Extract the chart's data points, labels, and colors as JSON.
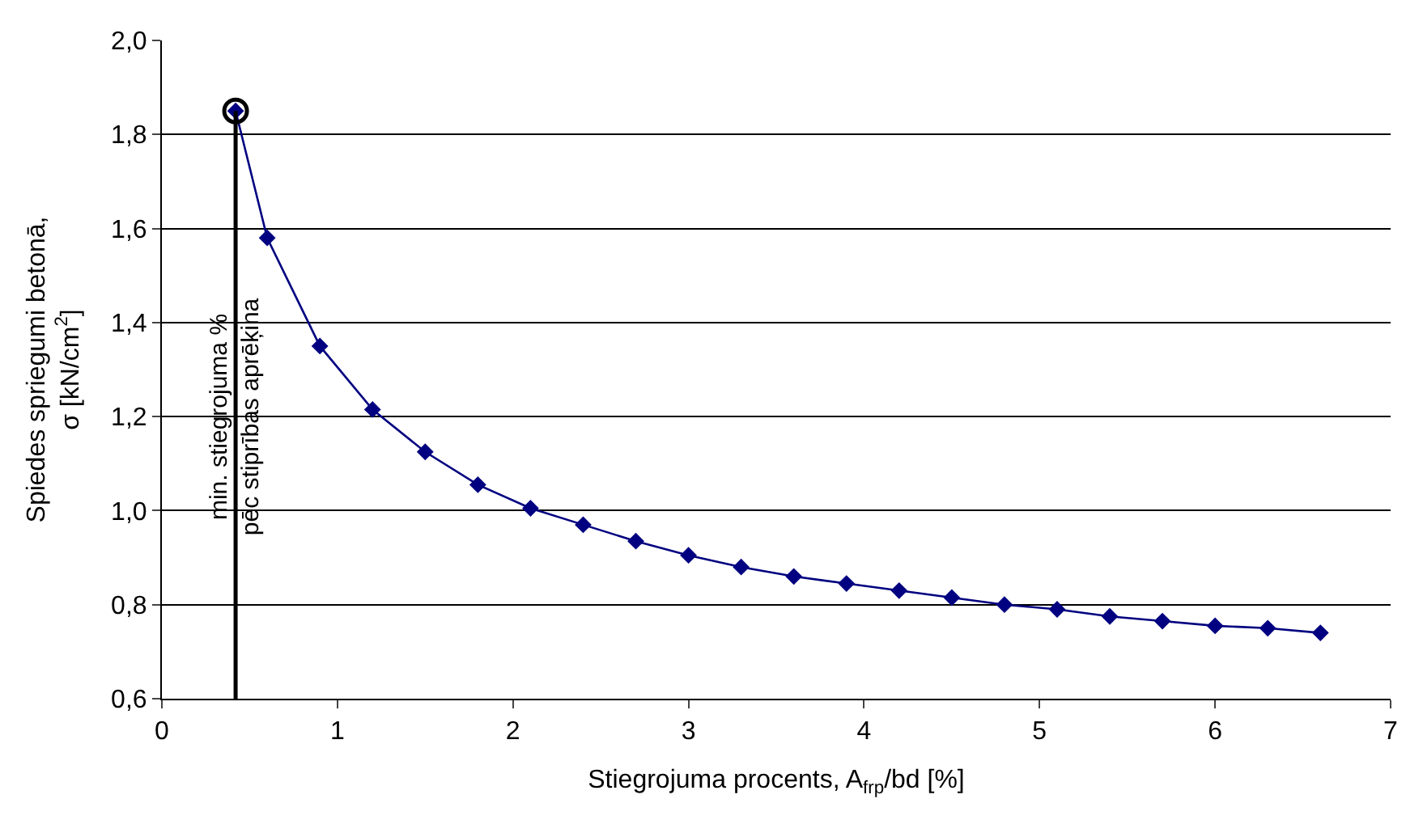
{
  "chart_data": {
    "type": "line",
    "xlabel": "Stiegrojuma procents, A$_{frp}$/bd [%]",
    "ylabel": "Spiedes spriegumi betonā,\nσ [kN/cm$^{2}$]",
    "xlim": [
      0,
      7
    ],
    "xticks": [
      0,
      1,
      2,
      3,
      4,
      5,
      6,
      7
    ],
    "ylim": [
      0.6,
      2.0
    ],
    "yticks": [
      {
        "value": 0.6,
        "label": "0,6"
      },
      {
        "value": 0.8,
        "label": "0,8"
      },
      {
        "value": 1.0,
        "label": "1,0"
      },
      {
        "value": 1.2,
        "label": "1,2"
      },
      {
        "value": 1.4,
        "label": "1,4"
      },
      {
        "value": 1.6,
        "label": "1,6"
      },
      {
        "value": 1.8,
        "label": "1,8"
      },
      {
        "value": 2.0,
        "label": "2,0"
      }
    ],
    "grid": "y",
    "legend": false,
    "series": [
      {
        "color": "#000080",
        "marker": "diamond",
        "line_style": "solid",
        "x": [
          0.42,
          0.6,
          0.9,
          1.2,
          1.5,
          1.8,
          2.1,
          2.4,
          2.7,
          3.0,
          3.3,
          3.6,
          3.9,
          4.2,
          4.5,
          4.8,
          5.1,
          5.4,
          5.7,
          6.0,
          6.3,
          6.6
        ],
        "values": [
          1.85,
          1.58,
          1.35,
          1.215,
          1.125,
          1.055,
          1.005,
          0.97,
          0.935,
          0.905,
          0.88,
          0.86,
          0.845,
          0.83,
          0.815,
          0.8,
          0.79,
          0.775,
          0.765,
          0.755,
          0.75,
          0.74
        ]
      },
      {
        "type": "scatter",
        "color": "#000000",
        "marker": "circle",
        "x": [
          0.42
        ],
        "values": [
          1.85
        ]
      }
    ],
    "ref_lines": [
      {
        "axis": "x",
        "value": 0.42,
        "color": "#000000",
        "line_style": "solid",
        "label": "min. stiegrojuma %\npēc stiprības aprēķina"
      }
    ]
  }
}
